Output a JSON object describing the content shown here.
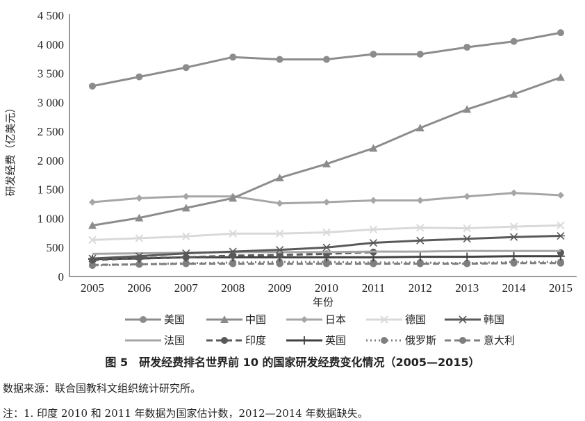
{
  "chart_data": {
    "type": "line",
    "xlabel": "年份",
    "ylabel": "研发经费（亿美元）",
    "ylim": [
      0,
      4500
    ],
    "yticks": [
      0,
      500,
      1000,
      1500,
      2000,
      2500,
      3000,
      3500,
      4000,
      4500
    ],
    "ytick_labels": [
      "0",
      "500",
      "1 000",
      "1 500",
      "2 000",
      "2 500",
      "3 000",
      "3 500",
      "4 000",
      "4 500"
    ],
    "x": [
      "2005",
      "2006",
      "2007",
      "2008",
      "2009",
      "2010",
      "2011",
      "2012",
      "2013",
      "2014",
      "2015"
    ],
    "grid": false,
    "legend_position": "bottom",
    "series": [
      {
        "name": "美国",
        "color": "#8c8c8c",
        "marker": "circle",
        "dash": "solid",
        "values": [
          3280,
          3440,
          3600,
          3780,
          3740,
          3740,
          3830,
          3830,
          3950,
          4050,
          4200
        ]
      },
      {
        "name": "中国",
        "color": "#8c8c8c",
        "marker": "triangle",
        "dash": "solid",
        "values": [
          880,
          1010,
          1180,
          1350,
          1700,
          1940,
          2210,
          2560,
          2880,
          3140,
          3430
        ]
      },
      {
        "name": "日本",
        "color": "#a6a6a6",
        "marker": "diamond",
        "dash": "solid",
        "values": [
          1280,
          1350,
          1380,
          1380,
          1260,
          1280,
          1310,
          1310,
          1380,
          1440,
          1400
        ]
      },
      {
        "name": "德国",
        "color": "#d9d9d9",
        "marker": "x",
        "dash": "solid",
        "values": [
          630,
          660,
          690,
          740,
          740,
          760,
          810,
          840,
          830,
          860,
          880
        ]
      },
      {
        "name": "韩国",
        "color": "#595959",
        "marker": "asterisk",
        "dash": "solid",
        "values": [
          310,
          350,
          400,
          430,
          460,
          500,
          580,
          620,
          650,
          680,
          700
        ]
      },
      {
        "name": "法国",
        "color": "#a6a6a6",
        "marker": "none",
        "dash": "solid",
        "values": [
          390,
          400,
          410,
          420,
          420,
          420,
          430,
          430,
          440,
          440,
          440
        ]
      },
      {
        "name": "印度",
        "color": "#595959",
        "marker": "circle",
        "dash": "dash",
        "values": [
          280,
          320,
          330,
          360,
          370,
          390,
          420,
          null,
          null,
          null,
          410
        ]
      },
      {
        "name": "英国",
        "color": "#404040",
        "marker": "plus",
        "dash": "solid",
        "values": [
          300,
          310,
          330,
          330,
          330,
          330,
          330,
          340,
          340,
          350,
          350
        ]
      },
      {
        "name": "俄罗斯",
        "color": "#7f7f7f",
        "marker": "circle",
        "dash": "dot",
        "values": [
          190,
          210,
          230,
          240,
          250,
          250,
          240,
          240,
          230,
          250,
          250
        ]
      },
      {
        "name": "意大利",
        "color": "#7f7f7f",
        "marker": "circle",
        "dash": "dash",
        "values": [
          200,
          210,
          220,
          220,
          220,
          220,
          220,
          220,
          220,
          230,
          230
        ]
      }
    ]
  },
  "caption": "图 5　研发经费排名世界前 10 的国家研发经费变化情况（2005—2015）",
  "source_note": "数据来源：联合国教科文组织统计研究所。",
  "note": "注：1. 印度 2010 和 2011 年数据为国家估计数，2012—2014 年数据缺失。"
}
